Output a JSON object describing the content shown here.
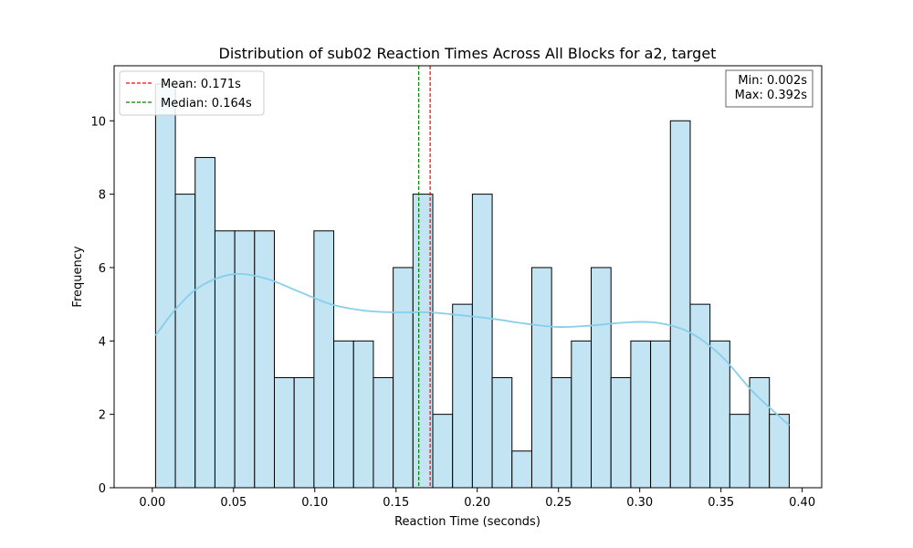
{
  "chart_data": {
    "type": "bar",
    "title": "Distribution of sub02 Reaction Times Across All Blocks for a2, target",
    "xlabel": "Reaction Time (seconds)",
    "ylabel": "Frequency",
    "xlim": [
      -0.0235,
      0.412
    ],
    "ylim": [
      0,
      11.5
    ],
    "xticks": [
      0.0,
      0.05,
      0.1,
      0.15,
      0.2,
      0.25,
      0.3,
      0.35,
      0.4
    ],
    "xtick_labels": [
      "0.00",
      "0.05",
      "0.10",
      "0.15",
      "0.20",
      "0.25",
      "0.30",
      "0.35",
      "0.40"
    ],
    "yticks": [
      0,
      2,
      4,
      6,
      8,
      10
    ],
    "ytick_labels": [
      "0",
      "2",
      "4",
      "6",
      "8",
      "10"
    ],
    "bin_start": 0.002,
    "bin_end": 0.392,
    "counts": [
      11,
      8,
      9,
      7,
      7,
      7,
      3,
      3,
      7,
      4,
      4,
      3,
      6,
      8,
      2,
      5,
      8,
      3,
      1,
      6,
      3,
      4,
      6,
      3,
      4,
      4,
      10,
      5,
      4,
      2,
      3,
      2
    ],
    "bar_color": "#c2e4f3",
    "bar_edge_color": "#000000",
    "kde": {
      "color": "#87ceeb",
      "x": [
        0.002,
        0.015,
        0.03,
        0.05,
        0.07,
        0.09,
        0.11,
        0.13,
        0.15,
        0.17,
        0.19,
        0.21,
        0.23,
        0.25,
        0.27,
        0.29,
        0.31,
        0.33,
        0.35,
        0.37,
        0.392
      ],
      "y": [
        4.15,
        4.9,
        5.5,
        5.82,
        5.7,
        5.35,
        5.0,
        4.83,
        4.78,
        4.78,
        4.7,
        4.6,
        4.47,
        4.38,
        4.42,
        4.5,
        4.5,
        4.25,
        3.6,
        2.6,
        1.7
      ]
    },
    "lines": [
      {
        "name": "Mean: 0.171s",
        "x": 0.171,
        "color": "#ff0000"
      },
      {
        "name": "Median: 0.164s",
        "x": 0.164,
        "color": "#008000"
      }
    ],
    "legend_position": "top-left",
    "stats_box": {
      "min_label": "Min: 0.002s",
      "max_label": "Max: 0.392s",
      "position": "top-right"
    },
    "grid": false
  }
}
